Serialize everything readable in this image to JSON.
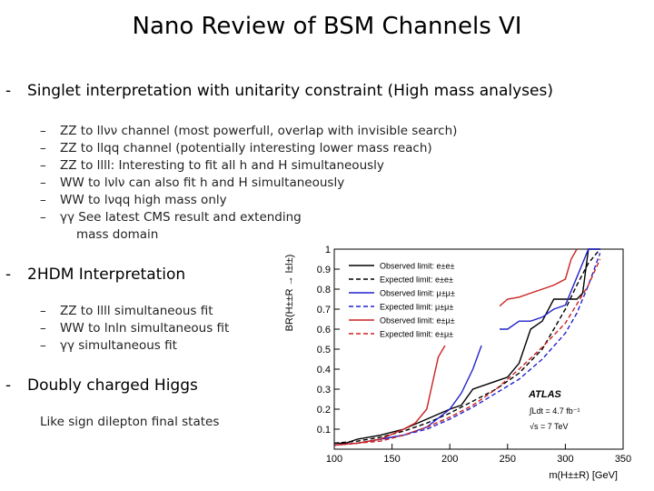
{
  "title": "Nano Review of BSM Channels VI",
  "sections": [
    {
      "heading": "Singlet interpretation with unitarity constraint (High mass analyses)",
      "items": [
        "ZZ to llνν channel (most powerfull, overlap with invisible search)",
        "ZZ to llqq channel (potentially interesting lower mass reach)",
        "ZZ to llll: Interesting to fit all h and H simultaneously",
        "WW to lνlν can also fit h and H simultaneously",
        "WW to lνqq high mass only",
        "γγ See latest CMS result and extending"
      ],
      "continuation": "mass domain"
    },
    {
      "heading": "2HDM Interpretation",
      "items": [
        "ZZ to llll simultaneous fit",
        "WW to lnln simultaneous fit",
        "γγ simultaneous fit"
      ]
    },
    {
      "heading": "Doubly charged Higgs",
      "text": "Like sign dilepton final states"
    }
  ],
  "chart_data": {
    "type": "line",
    "xlabel": "m(H±±R) [GeV]",
    "ylabel": "BR(H±±R → l±l±)",
    "xlim": [
      100,
      350
    ],
    "ylim": [
      0,
      1
    ],
    "xticks": [
      100,
      150,
      200,
      250,
      300,
      350
    ],
    "yticks": [
      0.1,
      0.2,
      0.3,
      0.4,
      0.5,
      0.6,
      0.7,
      0.8,
      0.9,
      1
    ],
    "legend_position": "top-left",
    "atlas_label": "ATLAS",
    "lumi_label": "∫Ldt = 4.7 fb⁻¹",
    "energy_label": "√s = 7 TeV",
    "series": [
      {
        "name": "Observed limit: e±e±",
        "color": "#000000",
        "dash": "solid",
        "x": [
          100,
          110,
          120,
          140,
          160,
          180,
          200,
          210,
          220,
          240,
          250,
          260,
          270,
          280,
          290,
          300,
          310,
          315,
          320,
          325,
          330
        ],
        "y": [
          0.03,
          0.03,
          0.05,
          0.07,
          0.1,
          0.15,
          0.2,
          0.22,
          0.3,
          0.34,
          0.36,
          0.43,
          0.6,
          0.64,
          0.75,
          0.75,
          0.75,
          0.78,
          1.0,
          1.0,
          1.0
        ]
      },
      {
        "name": "Expected limit: e±e±",
        "color": "#000000",
        "dash": "dashed",
        "x": [
          100,
          120,
          140,
          160,
          180,
          200,
          220,
          240,
          260,
          270,
          280,
          290,
          300,
          310,
          320,
          330
        ],
        "y": [
          0.03,
          0.04,
          0.06,
          0.09,
          0.13,
          0.18,
          0.24,
          0.3,
          0.38,
          0.44,
          0.5,
          0.6,
          0.7,
          0.82,
          0.93,
          1.0
        ]
      },
      {
        "name": "Observed limit: μ±μ±",
        "color": "#2222cc",
        "dash": "solid",
        "x": [
          100,
          120,
          140,
          160,
          180,
          200,
          210,
          220,
          230,
          240,
          250,
          260,
          270,
          280,
          290,
          300,
          310,
          320,
          330
        ],
        "y": [
          0.02,
          0.03,
          0.05,
          0.07,
          0.11,
          0.2,
          0.28,
          0.4,
          0.56,
          0.6,
          0.6,
          0.64,
          0.64,
          0.66,
          0.7,
          0.72,
          0.86,
          1.0,
          1.0
        ]
      },
      {
        "name": "Expected limit: μ±μ±",
        "color": "#2222cc",
        "dash": "dashed",
        "x": [
          100,
          120,
          140,
          160,
          180,
          200,
          220,
          240,
          260,
          280,
          300,
          310,
          320,
          330
        ],
        "y": [
          0.02,
          0.03,
          0.05,
          0.07,
          0.1,
          0.15,
          0.21,
          0.28,
          0.35,
          0.45,
          0.58,
          0.68,
          0.82,
          0.98
        ]
      },
      {
        "name": "Observed limit: e±μ±",
        "color": "#cc2222",
        "dash": "solid",
        "x": [
          100,
          120,
          140,
          160,
          170,
          180,
          185,
          190,
          200,
          210,
          220,
          230,
          240,
          250,
          260,
          270,
          280,
          290,
          300,
          305,
          310
        ],
        "y": [
          0.02,
          0.03,
          0.05,
          0.1,
          0.13,
          0.2,
          0.33,
          0.46,
          0.56,
          0.6,
          0.65,
          0.67,
          0.7,
          0.75,
          0.76,
          0.78,
          0.8,
          0.82,
          0.85,
          0.95,
          1.0
        ]
      },
      {
        "name": "Expected limit: e±μ±",
        "color": "#cc2222",
        "dash": "dashed",
        "x": [
          100,
          120,
          140,
          160,
          180,
          200,
          220,
          240,
          260,
          280,
          300,
          320,
          330
        ],
        "y": [
          0.02,
          0.03,
          0.04,
          0.07,
          0.11,
          0.16,
          0.22,
          0.3,
          0.4,
          0.51,
          0.63,
          0.82,
          0.95
        ]
      }
    ]
  }
}
